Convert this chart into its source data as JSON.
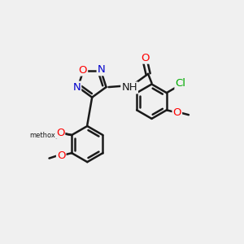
{
  "background_color": "#f0f0f0",
  "bond_color": "#1a1a1a",
  "bond_width": 1.8,
  "atom_colors": {
    "O": "#ff0000",
    "N": "#0000cc",
    "Cl": "#00aa00",
    "C": "#1a1a1a",
    "H": "#1a1a1a"
  },
  "font_size": 9.5,
  "fig_width": 3.0,
  "fig_height": 3.0,
  "dpi": 100
}
